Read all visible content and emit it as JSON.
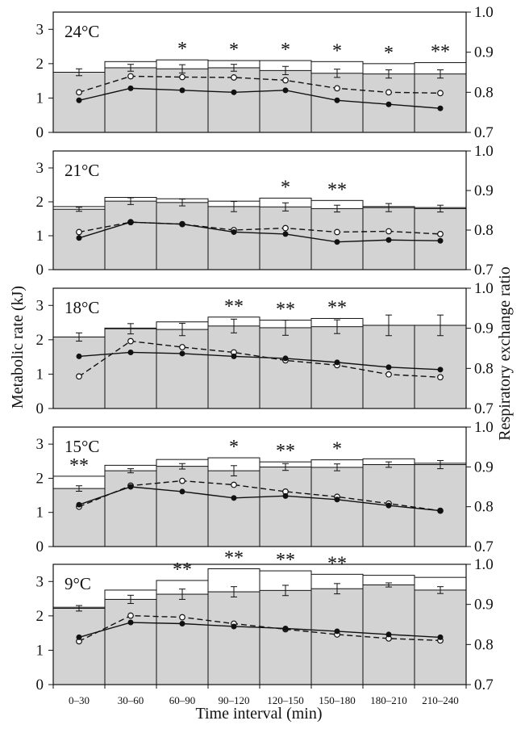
{
  "chart_data": {
    "type": "bar",
    "xlabel": "Time interval (min)",
    "ylabel": "Metabolic rate (kJ)",
    "ylabel_right": "Respiratory exchange ratio",
    "categories": [
      "0–30",
      "30–60",
      "60–90",
      "90–120",
      "120–150",
      "150–180",
      "180–210",
      "210–240"
    ],
    "ylim": [
      0,
      3.5
    ],
    "yticks": [
      "0",
      "1",
      "2",
      "3"
    ],
    "ylim_right": [
      0.7,
      1.0
    ],
    "yticks_right": [
      "0.7",
      "0.8",
      "0.9",
      "1.0"
    ],
    "bars": "stacked: grey = lower value, white = upper value; error bar at the lower value",
    "panels": [
      {
        "temperature": "24°C",
        "grey": [
          1.75,
          1.88,
          1.85,
          1.88,
          1.8,
          1.72,
          1.7,
          1.7
        ],
        "white": [
          1.75,
          2.06,
          2.11,
          2.09,
          2.09,
          2.06,
          2.0,
          2.03
        ],
        "err": [
          0.1,
          0.1,
          0.12,
          0.1,
          0.12,
          0.12,
          0.12,
          0.12
        ],
        "rer_solid": [
          0.78,
          0.81,
          0.805,
          0.8,
          0.805,
          0.78,
          0.77,
          0.76
        ],
        "rer_dashed": [
          0.8,
          0.84,
          0.838,
          0.837,
          0.83,
          0.81,
          0.8,
          0.798
        ],
        "stars": [
          "",
          "",
          "*",
          "*",
          "*",
          "*",
          "*",
          "**"
        ]
      },
      {
        "temperature": "21°C",
        "grey": [
          1.78,
          2.02,
          1.98,
          1.86,
          1.85,
          1.8,
          1.83,
          1.8
        ],
        "white": [
          1.86,
          2.13,
          2.09,
          2.02,
          2.11,
          2.04,
          1.86,
          1.83
        ],
        "err": [
          0.06,
          0.1,
          0.1,
          0.15,
          0.12,
          0.1,
          0.12,
          0.1
        ],
        "rer_solid": [
          0.78,
          0.82,
          0.815,
          0.795,
          0.79,
          0.77,
          0.775,
          0.773
        ],
        "rer_dashed": [
          0.795,
          0.82,
          0.815,
          0.8,
          0.805,
          0.795,
          0.797,
          0.79
        ],
        "stars": [
          "",
          "",
          "",
          "",
          "*",
          "**",
          "",
          ""
        ]
      },
      {
        "temperature": "18°C",
        "grey": [
          2.08,
          2.32,
          2.3,
          2.4,
          2.35,
          2.38,
          2.42,
          2.42
        ],
        "white": [
          2.08,
          2.34,
          2.52,
          2.66,
          2.57,
          2.62,
          2.42,
          2.42
        ],
        "err": [
          0.12,
          0.15,
          0.18,
          0.2,
          0.22,
          0.2,
          0.3,
          0.3
        ],
        "rer_solid": [
          0.83,
          0.84,
          0.837,
          0.83,
          0.825,
          0.815,
          0.803,
          0.797
        ],
        "rer_dashed": [
          0.78,
          0.868,
          0.853,
          0.84,
          0.82,
          0.808,
          0.785,
          0.778
        ],
        "stars": [
          "",
          "",
          "",
          "**",
          "**",
          "**",
          "",
          ""
        ]
      },
      {
        "temperature": "15°C",
        "grey": [
          1.7,
          2.22,
          2.35,
          2.22,
          2.33,
          2.32,
          2.4,
          2.4
        ],
        "white": [
          2.06,
          2.38,
          2.55,
          2.6,
          2.48,
          2.54,
          2.57,
          2.44
        ],
        "err": [
          0.08,
          0.06,
          0.08,
          0.15,
          0.1,
          0.1,
          0.08,
          0.12
        ],
        "rer_solid": [
          0.805,
          0.85,
          0.838,
          0.822,
          0.827,
          0.818,
          0.803,
          0.79
        ],
        "rer_dashed": [
          0.8,
          0.853,
          0.865,
          0.855,
          0.838,
          0.825,
          0.808,
          0.79
        ],
        "stars": [
          "**",
          "",
          "",
          "*",
          "**",
          "*",
          "",
          ""
        ]
      },
      {
        "temperature": "9°C",
        "grey": [
          2.22,
          2.48,
          2.63,
          2.7,
          2.74,
          2.79,
          2.9,
          2.75
        ],
        "white": [
          2.25,
          2.75,
          3.03,
          3.37,
          3.31,
          3.21,
          3.18,
          3.12
        ],
        "err": [
          0.08,
          0.12,
          0.15,
          0.15,
          0.15,
          0.15,
          0.06,
          0.1
        ],
        "rer_solid": [
          0.818,
          0.855,
          0.852,
          0.845,
          0.84,
          0.833,
          0.825,
          0.818
        ],
        "rer_dashed": [
          0.808,
          0.872,
          0.868,
          0.852,
          0.838,
          0.825,
          0.815,
          0.81
        ],
        "stars": [
          "",
          "",
          "**",
          "**",
          "**",
          "**",
          "",
          ""
        ]
      }
    ]
  }
}
